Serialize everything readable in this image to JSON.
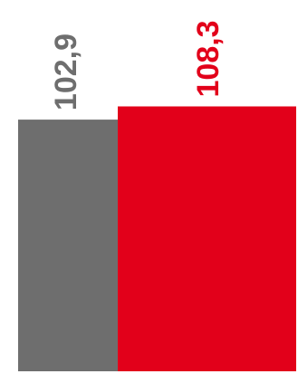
{
  "chart_data": {
    "type": "bar",
    "categories": [
      "",
      ""
    ],
    "values": [
      102.9,
      108.3
    ],
    "value_labels": [
      "102,9",
      "108,3"
    ],
    "colors": [
      "#6e6e6e",
      "#e2001a"
    ],
    "label_colors": [
      "#6e6e6e",
      "#e2001a"
    ],
    "baseline": 0,
    "ylim": [
      0,
      110
    ],
    "grid": false,
    "legend": "none",
    "label_orientation": "vertical"
  }
}
